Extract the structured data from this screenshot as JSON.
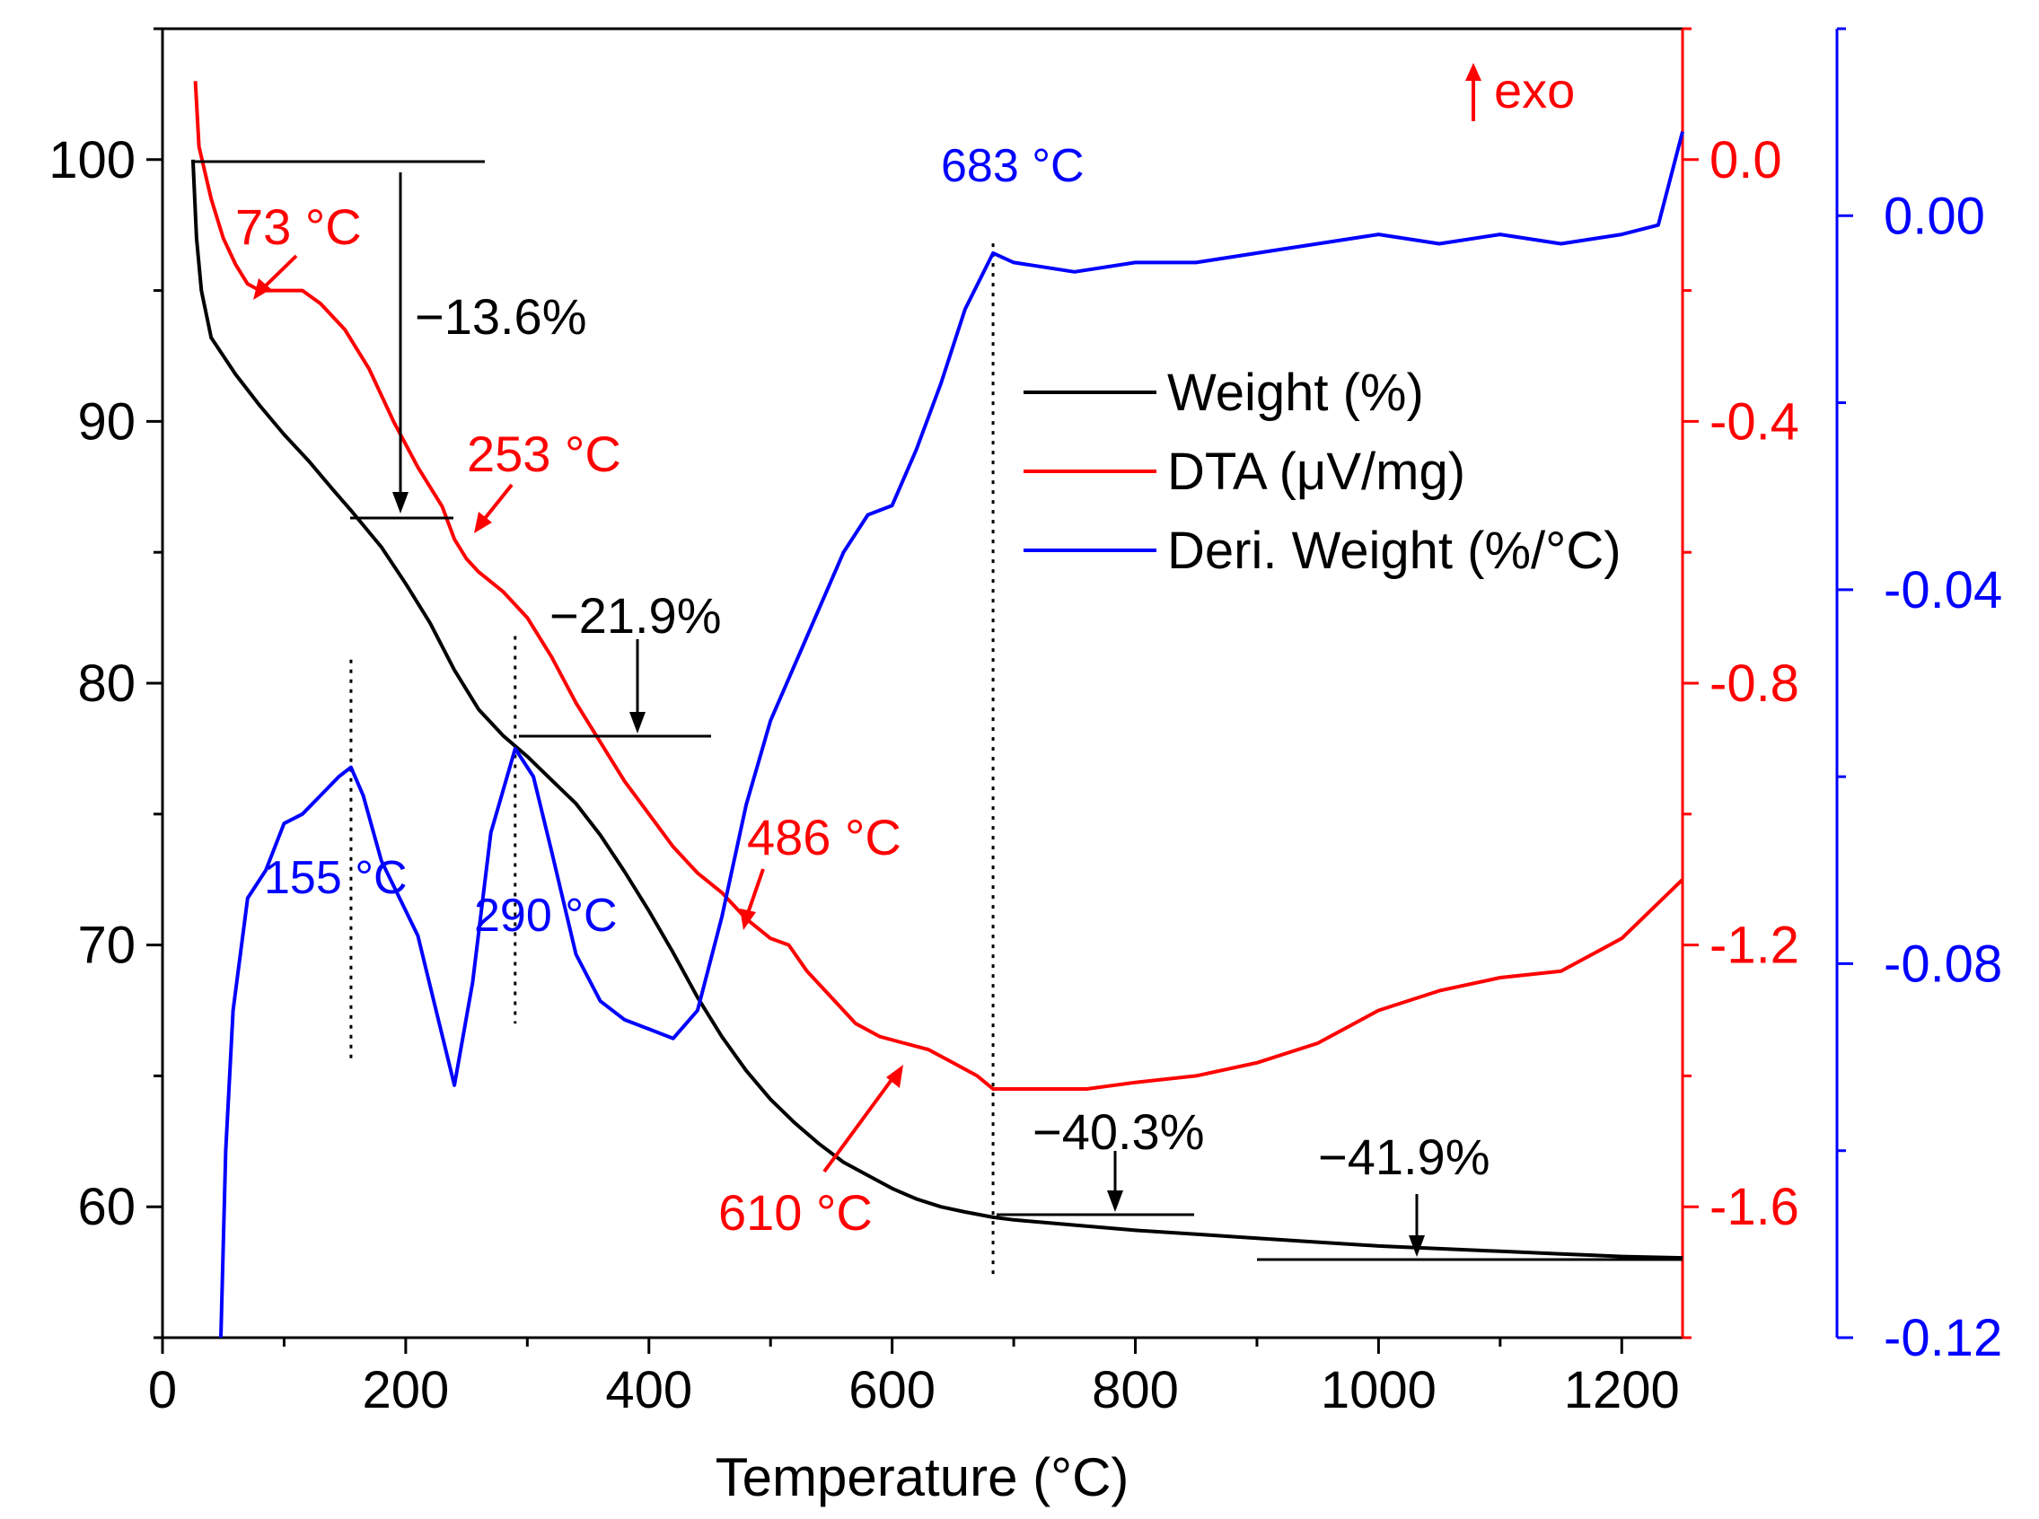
{
  "chart_data": {
    "type": "line",
    "xlabel": "Temperature (°C)",
    "xlim": [
      0,
      1250
    ],
    "xticks": [
      0,
      200,
      400,
      600,
      800,
      1000,
      1200
    ],
    "ylim_left": [
      55,
      105
    ],
    "yticks_left": [
      60,
      70,
      80,
      90,
      100
    ],
    "ylim_dta": [
      -1.8,
      0.2
    ],
    "yticks_dta": [
      -1.6,
      -1.2,
      -0.8,
      -0.4,
      0.0
    ],
    "ylim_deriv": [
      -0.12,
      0.02
    ],
    "yticks_deriv": [
      -0.12,
      -0.08,
      -0.04,
      0.0
    ],
    "colors": {
      "weight": "#000000",
      "dta": "#ff0000",
      "deriv": "#0000ff"
    },
    "series": [
      {
        "name": "Weight (%)",
        "axis": "left",
        "x": [
          25,
          28,
          32,
          40,
          60,
          80,
          100,
          120,
          140,
          155,
          180,
          200,
          220,
          240,
          260,
          280,
          300,
          320,
          340,
          360,
          380,
          400,
          420,
          440,
          460,
          480,
          500,
          520,
          540,
          560,
          580,
          600,
          620,
          640,
          660,
          683,
          700,
          750,
          800,
          850,
          900,
          950,
          1000,
          1050,
          1100,
          1150,
          1200,
          1250
        ],
        "values": [
          100,
          97,
          95,
          93.2,
          91.8,
          90.6,
          89.5,
          88.5,
          87.4,
          86.6,
          85.2,
          83.8,
          82.3,
          80.5,
          79,
          78,
          77.2,
          76.3,
          75.4,
          74.2,
          72.8,
          71.3,
          69.7,
          68,
          66.5,
          65.2,
          64.1,
          63.2,
          62.4,
          61.7,
          61.2,
          60.7,
          60.3,
          60,
          59.8,
          59.6,
          59.5,
          59.3,
          59.1,
          58.95,
          58.8,
          58.65,
          58.5,
          58.4,
          58.3,
          58.2,
          58.1,
          58.05
        ]
      },
      {
        "name": "DTA (μV/mg)",
        "axis": "dta",
        "x": [
          27,
          30,
          40,
          50,
          60,
          70,
          80,
          100,
          115,
          130,
          150,
          170,
          190,
          210,
          230,
          240,
          250,
          260,
          280,
          300,
          320,
          340,
          360,
          380,
          400,
          420,
          440,
          460,
          480,
          500,
          515,
          530,
          550,
          570,
          590,
          610,
          630,
          650,
          670,
          683,
          720,
          760,
          800,
          850,
          900,
          950,
          1000,
          1050,
          1100,
          1150,
          1200,
          1250
        ],
        "values": [
          0.12,
          0.02,
          -0.06,
          -0.12,
          -0.16,
          -0.19,
          -0.2,
          -0.2,
          -0.2,
          -0.22,
          -0.26,
          -0.32,
          -0.4,
          -0.47,
          -0.53,
          -0.58,
          -0.61,
          -0.63,
          -0.66,
          -0.7,
          -0.76,
          -0.83,
          -0.89,
          -0.95,
          -1.0,
          -1.05,
          -1.09,
          -1.12,
          -1.16,
          -1.19,
          -1.2,
          -1.24,
          -1.28,
          -1.32,
          -1.34,
          -1.35,
          -1.36,
          -1.38,
          -1.4,
          -1.42,
          -1.42,
          -1.42,
          -1.41,
          -1.4,
          -1.38,
          -1.35,
          -1.3,
          -1.27,
          -1.25,
          -1.24,
          -1.19,
          -1.1
        ]
      },
      {
        "name": "Deri. Weight (%/°C)",
        "axis": "deriv",
        "x": [
          48,
          52,
          58,
          70,
          85,
          100,
          115,
          130,
          145,
          155,
          165,
          180,
          195,
          210,
          225,
          240,
          255,
          270,
          290,
          305,
          320,
          340,
          360,
          380,
          400,
          420,
          440,
          460,
          480,
          500,
          520,
          540,
          560,
          580,
          600,
          620,
          640,
          660,
          683,
          700,
          750,
          800,
          850,
          900,
          950,
          1000,
          1050,
          1100,
          1150,
          1200,
          1230,
          1250
        ],
        "values": [
          -0.12,
          -0.1,
          -0.085,
          -0.073,
          -0.07,
          -0.065,
          -0.064,
          -0.062,
          -0.06,
          -0.059,
          -0.062,
          -0.069,
          -0.073,
          -0.077,
          -0.085,
          -0.093,
          -0.082,
          -0.066,
          -0.057,
          -0.06,
          -0.068,
          -0.079,
          -0.084,
          -0.086,
          -0.087,
          -0.088,
          -0.085,
          -0.075,
          -0.063,
          -0.054,
          -0.048,
          -0.042,
          -0.036,
          -0.032,
          -0.031,
          -0.025,
          -0.018,
          -0.01,
          -0.004,
          -0.005,
          -0.006,
          -0.005,
          -0.005,
          -0.004,
          -0.003,
          -0.002,
          -0.003,
          -0.002,
          -0.003,
          -0.002,
          -0.001,
          0.009
        ]
      }
    ],
    "legend": [
      "Weight (%)",
      "DTA (μV/mg)",
      "Deri. Weight (%/°C)"
    ],
    "legend_position": "upper-middle-right",
    "exo_label": "exo",
    "annotations": {
      "mass_losses": [
        "−13.6%",
        "−21.9%",
        "−40.3%",
        "−41.9%"
      ],
      "dta_peaks": [
        "73 °C",
        "253 °C",
        "486 °C",
        "610 °C"
      ],
      "deriv_peaks": [
        "155 °C",
        "290 °C",
        "683 °C"
      ]
    }
  }
}
